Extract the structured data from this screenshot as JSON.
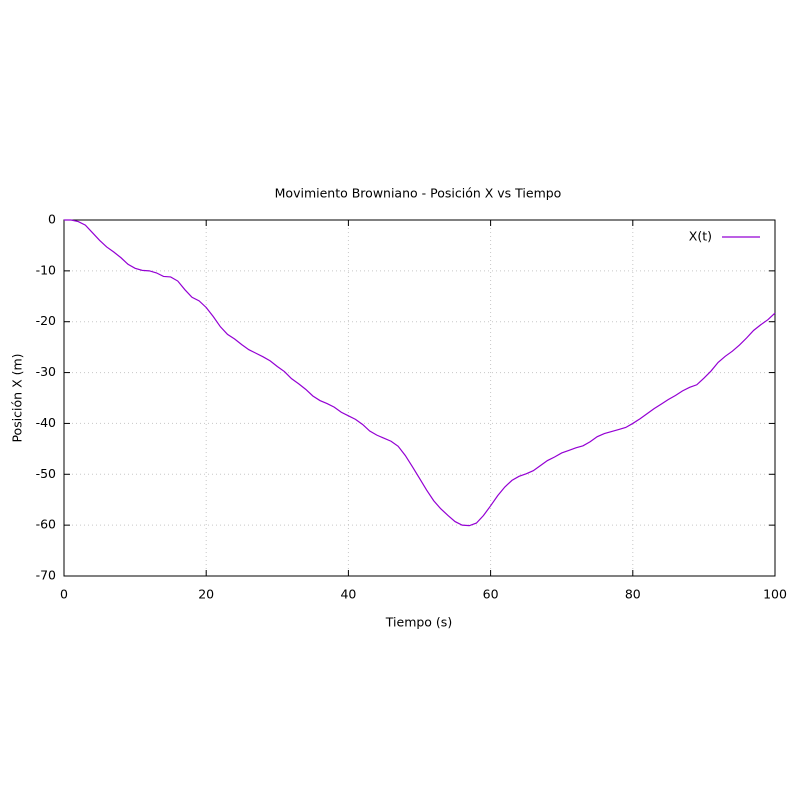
{
  "chart_data": {
    "type": "line",
    "title": "Movimiento Browniano - Posición X vs Tiempo",
    "x_label": "Tiempo (s)",
    "y_label": "Posición X (m)",
    "x": [
      0,
      1,
      2,
      3,
      4,
      5,
      6,
      7,
      8,
      9,
      10,
      11,
      12,
      13,
      14,
      15,
      16,
      17,
      18,
      19,
      20,
      21,
      22,
      23,
      24,
      25,
      26,
      27,
      28,
      29,
      30,
      31,
      32,
      33,
      34,
      35,
      36,
      37,
      38,
      39,
      40,
      41,
      42,
      43,
      44,
      45,
      46,
      47,
      48,
      49,
      50,
      51,
      52,
      53,
      54,
      55,
      56,
      57,
      58,
      59,
      60,
      61,
      62,
      63,
      64,
      65,
      66,
      67,
      68,
      69,
      70,
      71,
      72,
      73,
      74,
      75,
      76,
      77,
      78,
      79,
      80,
      81,
      82,
      83,
      84,
      85,
      86,
      87,
      88,
      89,
      90,
      91,
      92,
      93,
      94,
      95,
      96,
      97,
      98,
      99,
      100
    ],
    "series": [
      {
        "name": "X(t)",
        "color": "#9400d3",
        "values": [
          0,
          0,
          -0.3,
          -1,
          -2.5,
          -4,
          -5.3,
          -6.3,
          -7.4,
          -8.7,
          -9.5,
          -9.9,
          -10,
          -10.4,
          -11.1,
          -11.2,
          -12,
          -13.7,
          -15.2,
          -15.9,
          -17.2,
          -19,
          -21,
          -22.5,
          -23.4,
          -24.5,
          -25.5,
          -26.2,
          -26.9,
          -27.7,
          -28.8,
          -29.8,
          -31.2,
          -32.2,
          -33.3,
          -34.6,
          -35.5,
          -36.1,
          -36.8,
          -37.8,
          -38.5,
          -39.2,
          -40.2,
          -41.5,
          -42.3,
          -42.9,
          -43.5,
          -44.5,
          -46.3,
          -48.5,
          -50.8,
          -53.1,
          -55.2,
          -56.8,
          -58.1,
          -59.3,
          -60,
          -60.1,
          -59.6,
          -58.1,
          -56.2,
          -54.2,
          -52.5,
          -51.2,
          -50.4,
          -49.9,
          -49.3,
          -48.3,
          -47.3,
          -46.6,
          -45.8,
          -45.3,
          -44.8,
          -44.4,
          -43.6,
          -42.6,
          -42,
          -41.6,
          -41.2,
          -40.8,
          -40,
          -39.1,
          -38.1,
          -37.1,
          -36.2,
          -35.3,
          -34.5,
          -33.6,
          -32.9,
          -32.4,
          -31.1,
          -29.7,
          -28,
          -26.8,
          -25.8,
          -24.6,
          -23.2,
          -21.7,
          -20.6,
          -19.6,
          -18.3
        ]
      }
    ],
    "xlim": [
      0,
      100
    ],
    "ylim": [
      -70,
      0
    ],
    "xticks": [
      0,
      20,
      40,
      60,
      80,
      100
    ],
    "yticks": [
      -70,
      -60,
      -50,
      -40,
      -30,
      -20,
      -10,
      0
    ],
    "grid": true,
    "legend": "upper right"
  }
}
